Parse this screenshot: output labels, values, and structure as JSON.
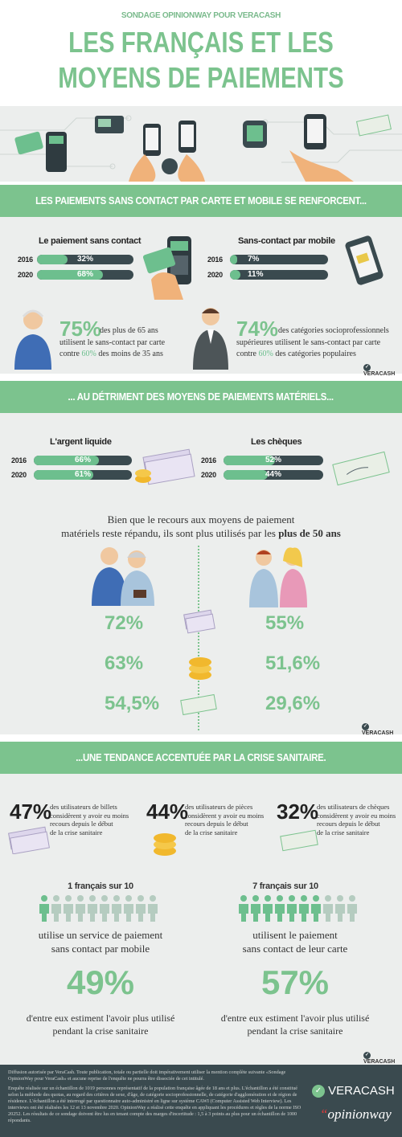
{
  "header": {
    "kicker": "SONDAGE OPINIONWAY POUR VERACASH",
    "title_line1": "LES FRANÇAIS ET LES",
    "title_line2": "MOYENS DE PAIEMENTS"
  },
  "section1": {
    "band": "LES PAIEMENTS SANS CONTACT PAR CARTE ET MOBILE SE RENFORCENT...",
    "card": {
      "label": "Le paiement sans contact",
      "rows": [
        {
          "year": "2016",
          "value": 32,
          "label": "32%"
        },
        {
          "year": "2020",
          "value": 68,
          "label": "68%"
        }
      ]
    },
    "mobile": {
      "label": "Sans-contact par mobile",
      "rows": [
        {
          "year": "2016",
          "value": 7,
          "label": "7%"
        },
        {
          "year": "2020",
          "value": 11,
          "label": "11%"
        }
      ]
    },
    "stat_senior": {
      "pct": "75%",
      "line1": "des plus de 65 ans",
      "line2": "utilisent le sans-contact par carte",
      "contre": "contre",
      "pct2": "60%",
      "line3": "des moins de 35 ans"
    },
    "stat_csp": {
      "pct": "74%",
      "line1": "des catégories socioprofessionnels",
      "line2": "supérieures utilisent le sans-contact par carte",
      "contre": "contre",
      "pct2": "60%",
      "line3": "des catégories populaires"
    },
    "logo": "VERACASH"
  },
  "section2": {
    "band": "... AU DÉTRIMENT DES MOYENS DE PAIEMENTS MATÉRIELS...",
    "cash": {
      "label": "L'argent liquide",
      "rows": [
        {
          "year": "2016",
          "value": 66,
          "label": "66%"
        },
        {
          "year": "2020",
          "value": 61,
          "label": "61%"
        }
      ]
    },
    "cheques": {
      "label": "Les chèques",
      "rows": [
        {
          "year": "2016",
          "value": 52,
          "label": "52%"
        },
        {
          "year": "2020",
          "value": 44,
          "label": "44%"
        }
      ]
    },
    "intro_line1": "Bien que le recours aux moyens de paiement",
    "intro_line2a": "matériels reste répandu, ils sont plus utilisés par les",
    "intro_line2b": "plus de 50 ans",
    "left_values": [
      "72%",
      "63%",
      "54,5%"
    ],
    "right_values": [
      "55%",
      "51,6%",
      "29,6%"
    ],
    "logo": "VERACASH"
  },
  "section3": {
    "band": "...UNE TENDANCE ACCENTUÉE PAR LA CRISE SANITAIRE.",
    "stats": [
      {
        "pct": "47%",
        "lines": [
          "des utilisateurs de billets",
          "considèrent y avoir eu moins",
          "recours depuis le début",
          "de la crise sanitaire"
        ]
      },
      {
        "pct": "44%",
        "lines": [
          "des utilisateurs de pièces",
          "considèrent y avoir eu moins",
          "recours depuis le début",
          "de la crise sanitaire"
        ]
      },
      {
        "pct": "32%",
        "lines": [
          "des utilisateurs de chèques",
          "considèrent y avoir eu moins",
          "recours depuis le début",
          "de la crise sanitaire"
        ]
      }
    ],
    "left": {
      "head": "1 français sur 10",
      "highlighted": 1,
      "line1": "utilise un service de paiement",
      "line2": "sans contact par mobile",
      "pct": "49%",
      "foot1": "d'entre eux estiment l'avoir plus utilisé",
      "foot2": "pendant la crise sanitaire"
    },
    "right": {
      "head": "7 français sur 10",
      "highlighted": 7,
      "line1": "utilisent le paiement",
      "line2": "sans contact de leur carte",
      "pct": "57%",
      "foot1": "d'entre eux estiment l'avoir plus utilisé",
      "foot2": "pendant la crise sanitaire"
    },
    "logo": "VERACASH"
  },
  "footer": {
    "p1": "Diffusion autorisée par VeraCash. Toute publication, totale ou partielle doit impérativement utiliser la mention complète suivante «Sondage OpinionWay pour VeraCash» et aucune reprise de l'enquête ne pourra être dissociée de cet intitulé.",
    "p2": "Enquête réalisée sur un échantillon de 1019 personnes représentatif de la population française âgée de 18 ans et plus. L'échantillon a été constitué selon la méthode des quotas, au regard des critères de sexe, d'âge, de catégorie socioprofessionnelle, de catégorie d'agglomération et de région de résidence. L'échantillon a été interrogé par questionnaire auto-administré en ligne sur système CAWI (Computer Assisted Web Interview). Les interviews ont été réalisées les 12 et 13 novembre 2020. OpinionWay a réalisé cette enquête en appliquant les procédures et règles de la norme ISO 20252. Les résultats de ce sondage doivent être lus en tenant compte des marges d'incertitude : 1,5 à 3 points au plus pour un échantillon de 1000 répondants.",
    "brand1": "VERACASH",
    "brand2": "opinionway"
  },
  "colors": {
    "green": "#7cc38e",
    "dark": "#3a4a4f",
    "panel": "#eceeed"
  }
}
